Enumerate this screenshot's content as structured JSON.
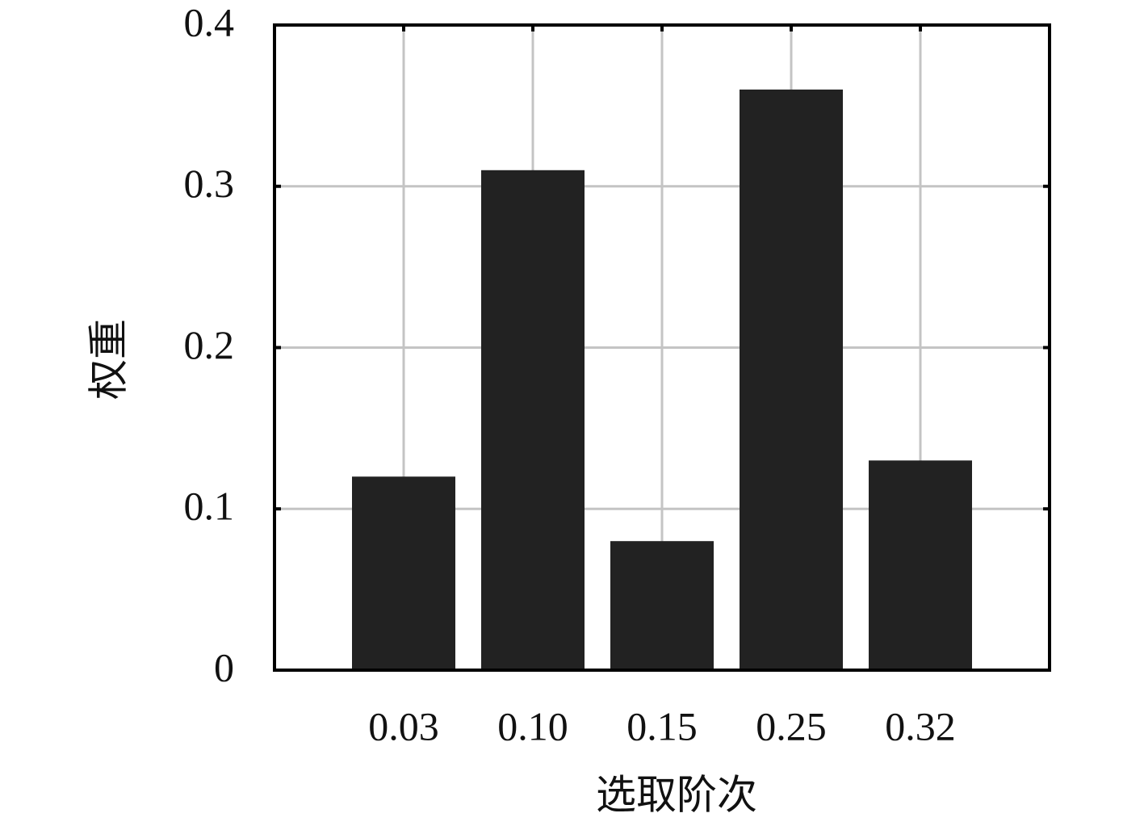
{
  "chart_data": {
    "type": "bar",
    "x_label": "选取阶次",
    "y_label": "权重",
    "categories": [
      "0.03",
      "0.10",
      "0.15",
      "0.25",
      "0.32"
    ],
    "values": [
      0.12,
      0.31,
      0.08,
      0.36,
      0.13
    ],
    "color": "#222222",
    "ylim": [
      0,
      0.4
    ],
    "yticks": [
      0,
      0.1,
      0.2,
      0.3,
      0.4
    ],
    "grid": true
  }
}
